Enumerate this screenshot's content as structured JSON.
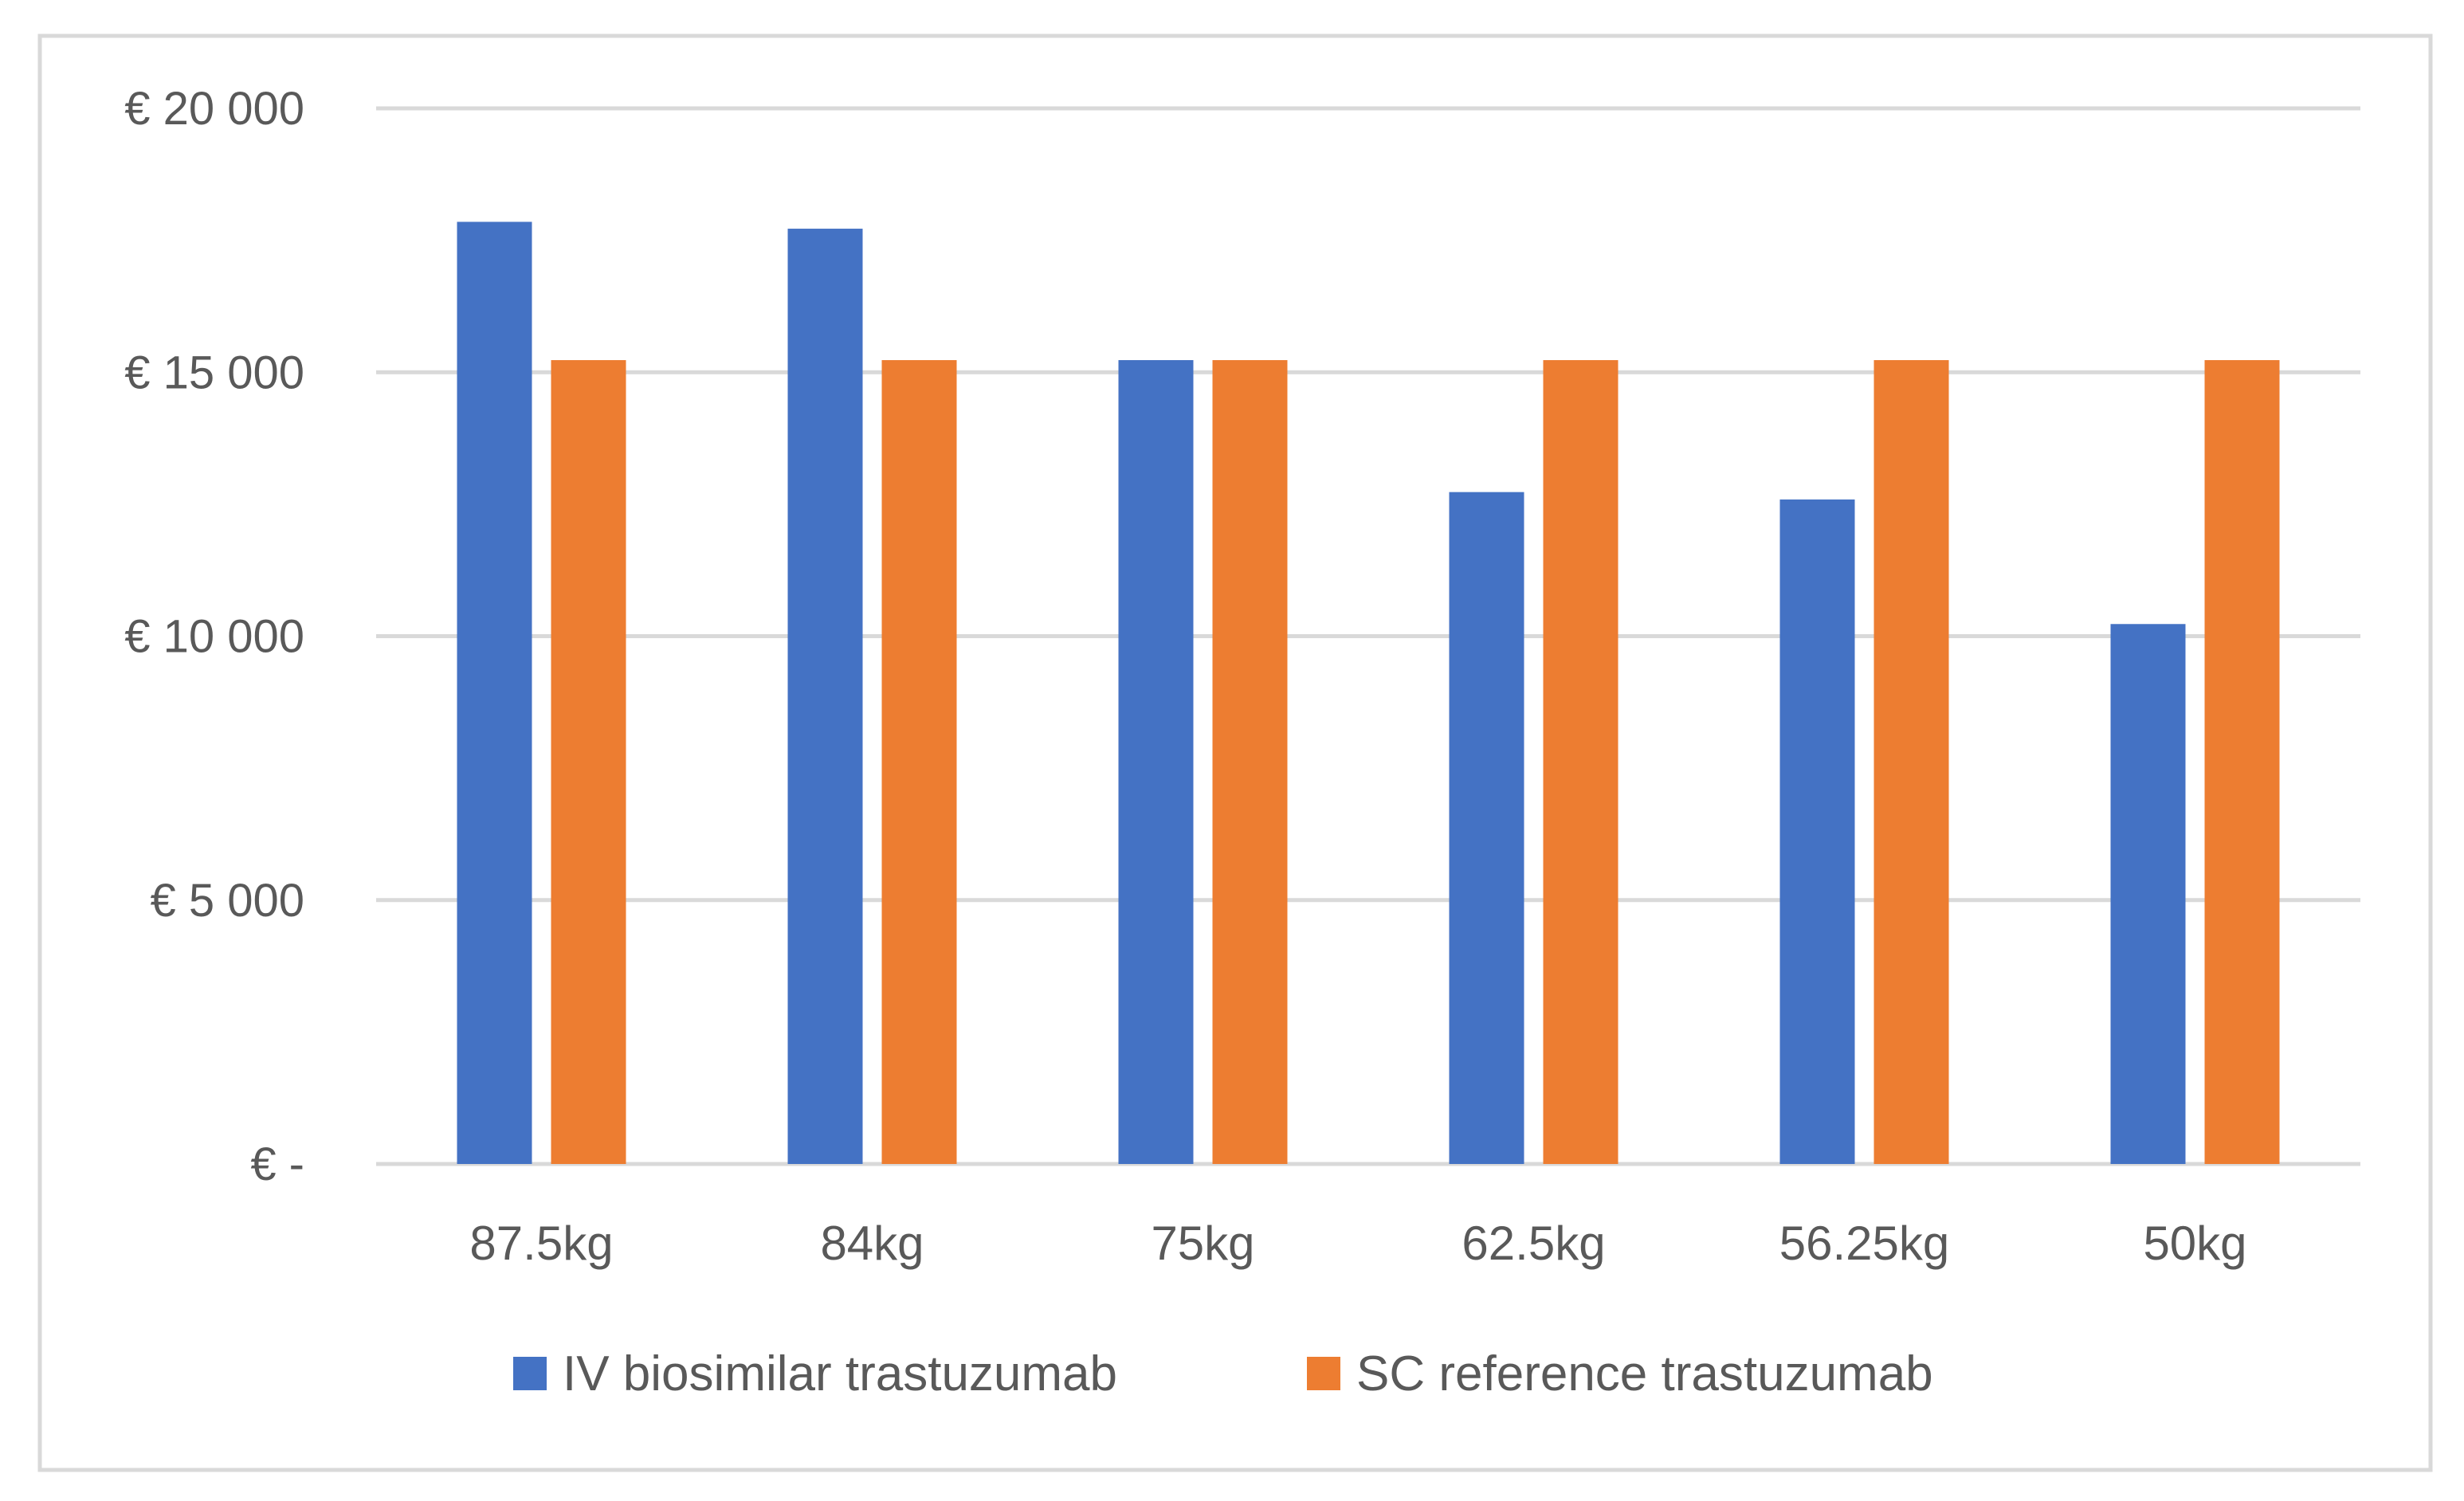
{
  "chart_data": {
    "type": "bar",
    "title": "",
    "xlabel": "",
    "ylabel": "",
    "categories": [
      "87.5kg",
      "84kg",
      "75kg",
      "62.5kg",
      "56.25kg",
      "50kg"
    ],
    "series": [
      {
        "name": "IV biosimilar trastuzumab",
        "color": "#4472C4",
        "values": [
          17850,
          17720,
          15230,
          12730,
          12590,
          10230
        ]
      },
      {
        "name": "SC reference trastuzumab",
        "color": "#ED7D31",
        "values": [
          15230,
          15230,
          15230,
          15230,
          15230,
          15230
        ]
      }
    ],
    "ylim": [
      0,
      20000
    ],
    "yticks": [
      0,
      5000,
      10000,
      15000,
      20000
    ],
    "ytick_labels": [
      "€ -",
      "€ 5 000",
      "€ 10 000",
      "€ 15 000",
      "€ 20 000"
    ],
    "grid": true,
    "legend_position": "bottom",
    "gridline_color": "#D9D9D9",
    "border_color": "#D9D9D9"
  }
}
